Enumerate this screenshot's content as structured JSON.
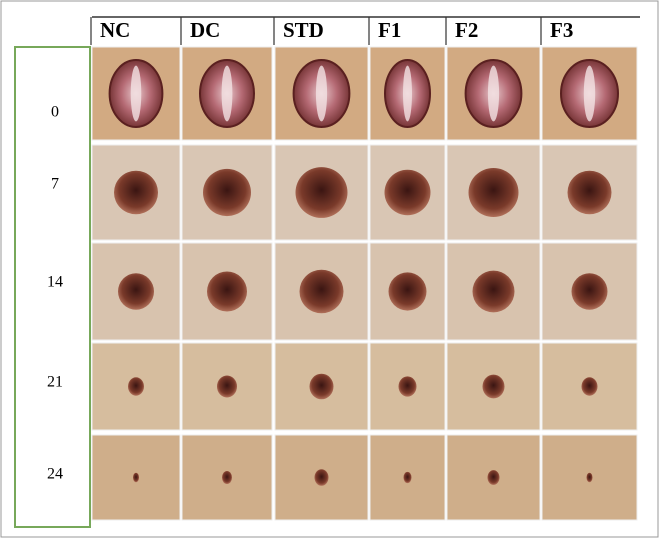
{
  "columns": [
    "NC",
    "DC",
    "STD",
    "F1",
    "F2",
    "F3"
  ],
  "rows": [
    "0",
    "7",
    "14",
    "21",
    "24"
  ]
}
